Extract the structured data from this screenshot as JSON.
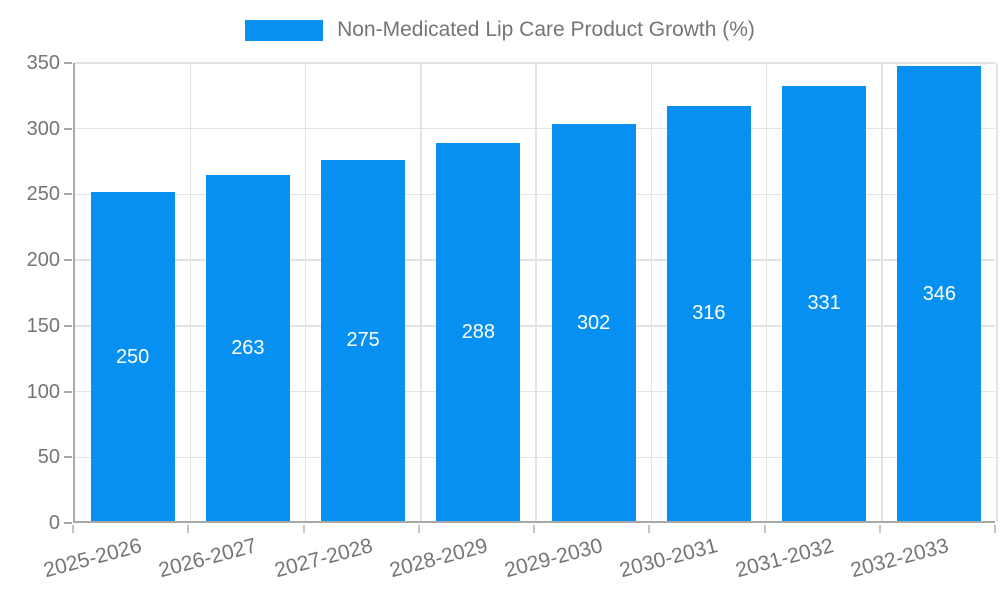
{
  "chart_data": {
    "type": "bar",
    "title": "Non-Medicated Lip Care Product Growth (%)",
    "legend_label": "Non-Medicated Lip Care Product Growth (%)",
    "legend_position": "top-center",
    "categories": [
      "2025-2026",
      "2026-2027",
      "2027-2028",
      "2028-2029",
      "2029-2030",
      "2030-2031",
      "2031-2032",
      "2032-2033"
    ],
    "values": [
      250,
      263,
      275,
      288,
      302,
      316,
      331,
      346
    ],
    "bar_value_labels": [
      "250",
      "263",
      "275",
      "288",
      "302",
      "316",
      "331",
      "346"
    ],
    "xlabel": "",
    "ylabel": "",
    "ylim": [
      0,
      350
    ],
    "ytick_step": 50,
    "yticks": [
      0,
      50,
      100,
      150,
      200,
      250,
      300,
      350
    ],
    "grid": true,
    "colors": {
      "bar": "#0691f2",
      "value_label": "#ffffff",
      "axis_line": "#a8a8a8",
      "gridline": "#e3e3e3",
      "tick_text": "#757575",
      "legend_text": "#757575"
    }
  }
}
